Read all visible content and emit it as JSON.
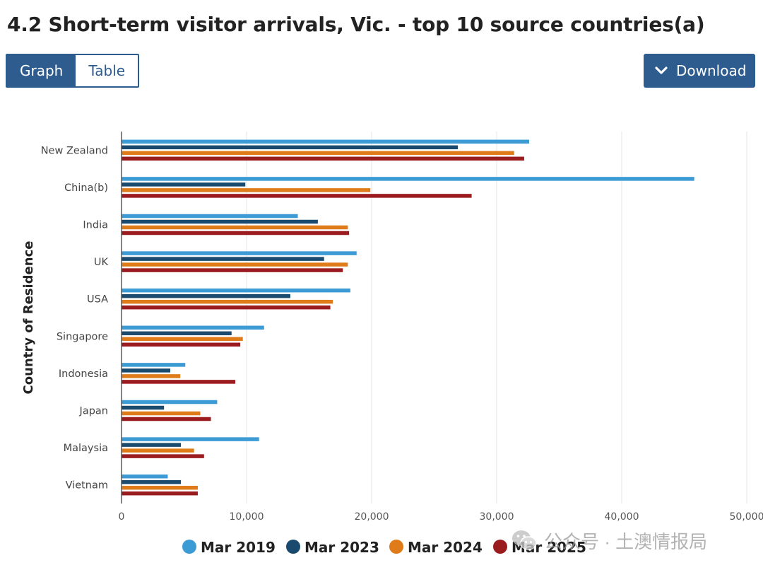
{
  "page": {
    "title": "4.2 Short-term visitor arrivals, Vic. - top 10 source countries(a)"
  },
  "view_toggle": {
    "tabs": [
      {
        "label": "Graph",
        "active": true
      },
      {
        "label": "Table",
        "active": false
      }
    ]
  },
  "download": {
    "label": "Download",
    "icon": "chevron-down-icon"
  },
  "watermark": {
    "text": "公众号 · 土澳情报局",
    "icon": "wechat-icon"
  },
  "colors": {
    "accent": "#2e5c8f",
    "grid": "#e6e6e6",
    "axis": "#333333",
    "mar2019": "#3c9ad4",
    "mar2023": "#1a4a6e",
    "mar2024": "#e07b1a",
    "mar2025": "#9b1c1f"
  },
  "chart_data": {
    "type": "bar",
    "orientation": "horizontal",
    "title": "",
    "xlabel": "",
    "ylabel": "Country of Residence",
    "xlim": [
      0,
      50000
    ],
    "xticks": [
      0,
      10000,
      20000,
      30000,
      40000,
      50000
    ],
    "xtick_labels": [
      "0",
      "10,000",
      "20,000",
      "30,000",
      "40,000",
      "50,000"
    ],
    "grid": "vertical",
    "legend_position": "bottom",
    "categories": [
      "New Zealand",
      "China(b)",
      "India",
      "UK",
      "USA",
      "Singapore",
      "Indonesia",
      "Japan",
      "Malaysia",
      "Vietnam"
    ],
    "series": [
      {
        "name": "Mar 2019",
        "color": "#3c9ad4",
        "values": [
          32600,
          45800,
          14100,
          18800,
          18300,
          11400,
          5100,
          7650,
          11000,
          3700
        ]
      },
      {
        "name": "Mar 2023",
        "color": "#1a4a6e",
        "values": [
          26900,
          9900,
          15700,
          16200,
          13500,
          8800,
          3900,
          3400,
          4750,
          4750
        ]
      },
      {
        "name": "Mar 2024",
        "color": "#e07b1a",
        "values": [
          31400,
          19900,
          18100,
          18100,
          16900,
          9700,
          4700,
          6300,
          5800,
          6100
        ]
      },
      {
        "name": "Mar 2025",
        "color": "#9b1c1f",
        "values": [
          32200,
          28000,
          18200,
          17700,
          16700,
          9500,
          9100,
          7150,
          6600,
          6100
        ]
      }
    ]
  }
}
